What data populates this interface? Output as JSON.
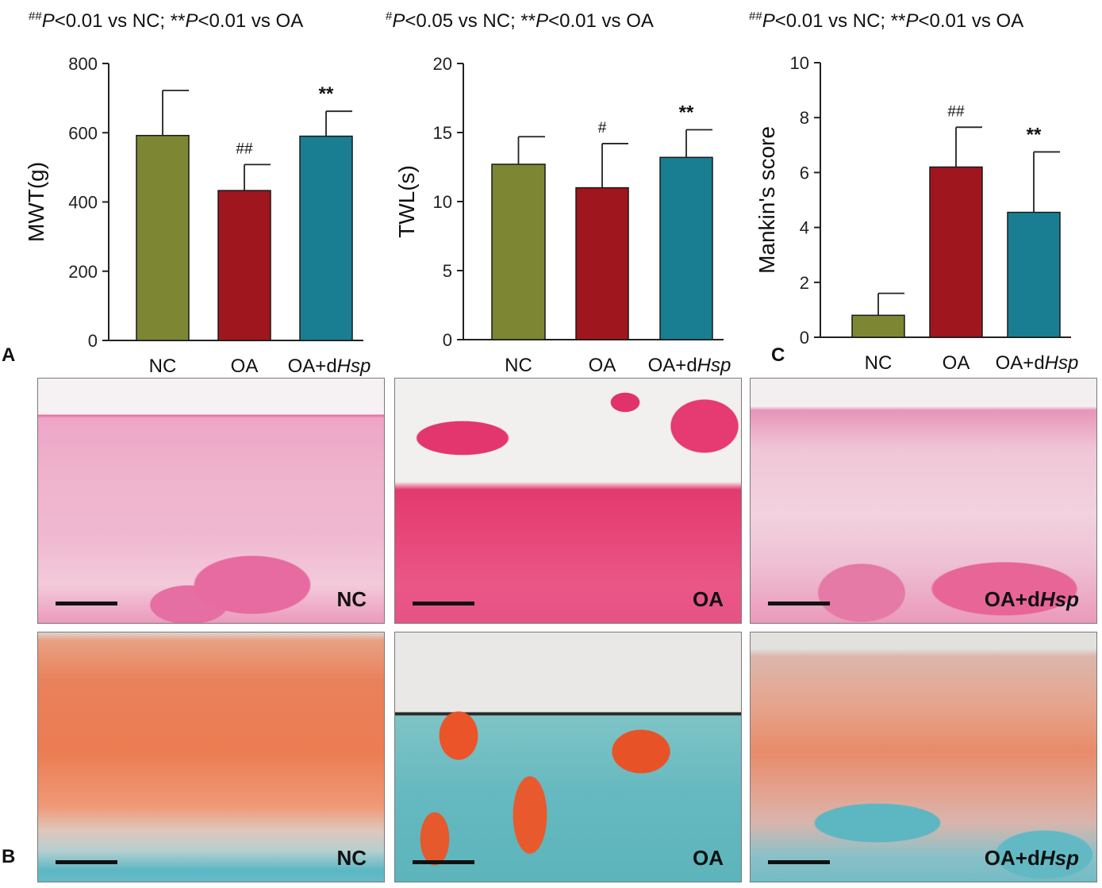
{
  "panel_letters": {
    "a": "A",
    "b": "B",
    "c": "C"
  },
  "chart_data": [
    {
      "type": "bar",
      "title_parts": [
        {
          "t": "##",
          "sup": true
        },
        {
          "t": "P",
          "italic": true
        },
        {
          "t": "<0.01 vs NC; "
        },
        {
          "t": "**"
        },
        {
          "t": "P",
          "italic": true
        },
        {
          "t": "<0.01 vs OA"
        }
      ],
      "ylabel": "MWT(g)",
      "ylim": [
        0,
        800
      ],
      "yticks": [
        0,
        200,
        400,
        600,
        800
      ],
      "categories": [
        [
          {
            "t": "NC"
          }
        ],
        [
          {
            "t": "OA"
          }
        ],
        [
          {
            "t": "OA+d"
          },
          {
            "t": "Hsp",
            "italic": true
          }
        ]
      ],
      "values": [
        592,
        433,
        590
      ],
      "errors": [
        130,
        75,
        72
      ],
      "annotations": [
        "",
        "##",
        "**"
      ],
      "colors": [
        "#7d8633",
        "#a0161e",
        "#1a7e93"
      ]
    },
    {
      "type": "bar",
      "title_parts": [
        {
          "t": "#",
          "sup": true
        },
        {
          "t": "P",
          "italic": true
        },
        {
          "t": "<0.05 vs NC; "
        },
        {
          "t": "**"
        },
        {
          "t": "P",
          "italic": true
        },
        {
          "t": "<0.01 vs OA"
        }
      ],
      "ylabel": "TWL(s)",
      "ylim": [
        0,
        20
      ],
      "yticks": [
        0,
        5,
        10,
        15,
        20
      ],
      "categories": [
        [
          {
            "t": "NC"
          }
        ],
        [
          {
            "t": "OA"
          }
        ],
        [
          {
            "t": "OA+d"
          },
          {
            "t": "Hsp",
            "italic": true
          }
        ]
      ],
      "values": [
        12.7,
        11.0,
        13.2
      ],
      "errors": [
        2.0,
        3.2,
        2.0
      ],
      "annotations": [
        "",
        "#",
        "**"
      ],
      "colors": [
        "#7d8633",
        "#a0161e",
        "#1a7e93"
      ]
    },
    {
      "type": "bar",
      "title_parts": [
        {
          "t": "##",
          "sup": true
        },
        {
          "t": "P",
          "italic": true
        },
        {
          "t": "<0.01 vs NC; "
        },
        {
          "t": "**"
        },
        {
          "t": "P",
          "italic": true
        },
        {
          "t": "<0.01 vs OA"
        }
      ],
      "ylabel": "Mankin's score",
      "ylim": [
        0,
        10
      ],
      "yticks": [
        0,
        2,
        4,
        6,
        8,
        10
      ],
      "categories": [
        [
          {
            "t": "NC"
          }
        ],
        [
          {
            "t": "OA"
          }
        ],
        [
          {
            "t": "OA+d"
          },
          {
            "t": "Hsp",
            "italic": true
          }
        ]
      ],
      "values": [
        0.8,
        6.2,
        4.55
      ],
      "errors": [
        0.8,
        1.45,
        2.2
      ],
      "annotations": [
        "",
        "##",
        "**"
      ],
      "colors": [
        "#7d8633",
        "#a0161e",
        "#1a7e93"
      ]
    }
  ],
  "histology": {
    "row1": [
      "NC",
      "OA",
      "OA+dHsp"
    ],
    "row2": [
      "NC",
      "OA",
      "OA+dHsp"
    ],
    "label_prefix": "OA+d",
    "label_italic": "Hsp"
  }
}
